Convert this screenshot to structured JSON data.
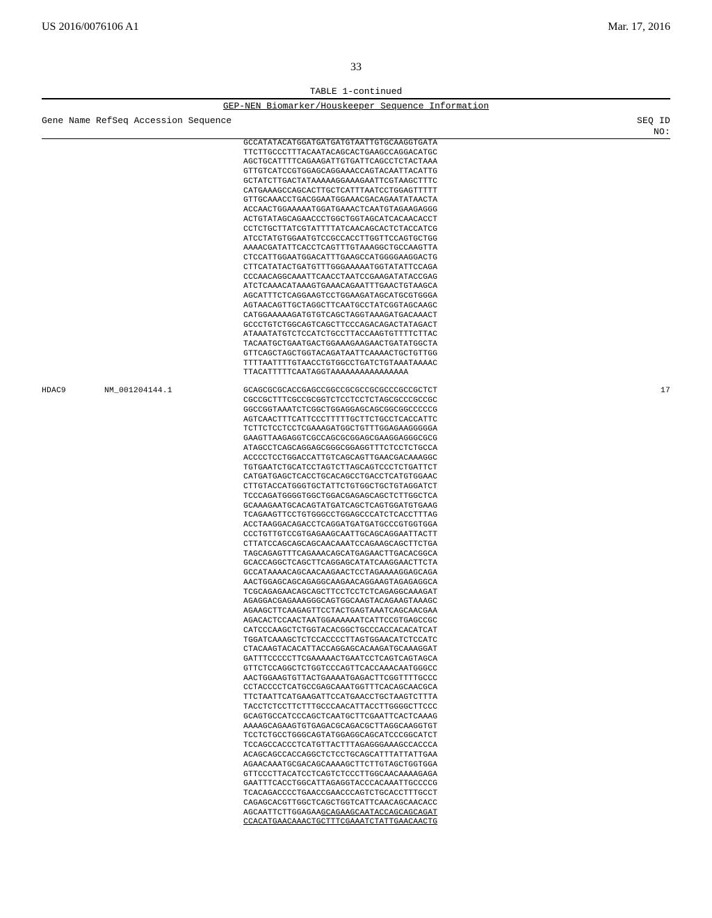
{
  "header": {
    "left": "US 2016/0076106 A1",
    "right": "Mar. 17, 2016"
  },
  "pageNumber": "33",
  "tableCaption": "TABLE 1-continued",
  "tableTitle": "GEP-NEN Biomarker/Houskeeper Sequence Information",
  "columns": {
    "left": "Gene Name RefSeq Accession Sequence",
    "right": "SEQ ID\nNO:"
  },
  "block1Lines": [
    "GCCATATACATGGATGATGATGTAATTGTGCAAGGTGATA",
    "TTCTTGCCCTTTACAATACAGCACTGAAGCCAGGACATGC",
    "AGCTGCATTTTCAGAAGATTGTGATTCAGCCTCTACTAAA",
    "GTTGTCATCCGTGGAGCAGGAAACCAGTACAATTACATTG",
    "GCTATCTTGACTATAAAAAGGAAAGAATTCGTAAGCTTTC",
    "CATGAAAGCCAGCACTTGCTCATTTAATCCTGGAGTTTTT",
    "GTTGCAAACCTGACGGAATGGAAACGACAGAATATAACTA",
    "ACCAACTGGAAAAATGGATGAAACTCAATGTAGAAGAGGG",
    "ACTGTATAGCAGAACCCTGGCTGGTAGCATCACAACACCT",
    "CCTCTGCTTATCGTATTTTATCAACAGCACTCTACCATCG",
    "ATCCTATGTGGAATGTCCGCCACCTTGGTTCCAGTGCTGG",
    "AAAACGATATTCACCTCAGTTTGTAAAGGCTGCCAAGTTA",
    "CTCCATTGGAATGGACATTTGAAGCCATGGGGAAGGACTG",
    "CTTCATATACTGATGTTTGGGAAAAATGGTATATTCCAGA",
    "CCCAACAGGCAAATTCAACCTAATCCGAAGATATACCGAG",
    "ATCTCAAACATAAAGTGAAACAGAATTTGAACTGTAAGCA",
    "AGCATTTCTCAGGAAGTCCTGGAAGATAGCATGCGTGGGA",
    "AGTAACAGTTGCTAGGCTTCAATGCCTATCGGTAGCAAGC",
    "CATGGAAAAAGATGTGTCAGCTAGGTAAAGATGACAAACT",
    "GCCCTGTCTGGCAGTCAGCTTCCCAGACAGACTATAGACT",
    "ATAAATATGTCTCCATCTGCCTTACCAAGTGTTTTCTTAC",
    "TACAATGCTGAATGACTGGAAAGAAGAACTGATATGGCTA",
    "GTTCAGCTAGCTGGTACAGATAATTCAAAACTGCTGTTGG",
    "TTTTAATTTTGTAACCTGTGGCCTGATCTGTAAATAAAAC",
    "TTACATTTTTCAATAGGTAAAAAAAAAAAAAAAA"
  ],
  "block2": {
    "gene": "HDAC9",
    "accession": "NM_001204144.1",
    "seqId": "17"
  },
  "block2Lines": [
    "GCAGCGCGCACCGAGCCGGCCGCGCCGCGCCCGCCGCTCT",
    "CGCCGCTTTCGCCGCGGTCTCCTCCTCTAGCGCCCGCCGC",
    "GGCCGGTAAATCTCGGCTGGAGGAGCAGCGGCGGCCCCCG",
    "AGTCAACTTTCATTCCCTTTTTGCTTCTGCCTCACCATTC",
    "TCTTCTCCTCCTCGAAAGATGGCTGTTTGGAGAAGGGGGA",
    "GAAGTTAAGAGGTCGCCAGCGCGGAGCGAAGGAGGGCGCG",
    "ATAGCCTCAGCAGGAGCGGGCGGAGGTTTCTCCTCTGCCA",
    "ACCCCTCCTGGACCATTGTCAGCAGTTGAACGACAAAGGC",
    "TGTGAATCTGCATCCTAGTCTTAGCAGTCCCTCTGATTCT",
    "CATGATGAGCTCACCTGCACAGCCTGACCTCATGTGGAAC",
    "CTTGTACCATGGGTGCTATTCTGTGGCTGCTGTAGGATCT",
    "TCCCAGATGGGGTGGCTGGACGAGAGCAGCTCTTGGCTCA",
    "GCAAAGAATGCACAGTATGATCAGCTCAGTGGATGTGAAG",
    "TCAGAAGTTCCTGTGGGCCTGGAGCCCATCTCACCTTTAG",
    "ACCTAAGGACAGACCTCAGGATGATGATGCCCGTGGTGGA",
    "CCCTGTTGTCCGTGAGAAGCAATTGCAGCAGGAATTACTT",
    "CTTATCCAGCAGCAGCAACAAATCCAGAAGCAGCTTCTGA",
    "TAGCAGAGTTTCAGAAACAGCATGAGAACTTGACACGGCA",
    "GCACCAGGCTCAGCTTCAGGAGCATATCAAGGAACTTCTA",
    "GCCATAAAACAGCAACAAGAACTCCTAGAAAAGGAGCAGA",
    "AACTGGAGCAGCAGAGGCAAGAACAGGAAGTAGAGAGGCA",
    "TCGCAGAGAACAGCAGCTTCCTCCTCTCAGAGGCAAAGAT",
    "AGAGGACGAGAAAGGGCAGTGGCAAGTACAGAAGTAAAGC",
    "AGAAGCTTCAAGAGTTCCTACTGAGTAAATCAGCAACGAA",
    "AGACACTCCAACTAATGGAAAAAATCATTCCGTGAGCCGC",
    "CATCCCAAGCTCTGGTACACGGCTGCCCACCACACATCAT",
    "TGGATCAAAGCTCTCCACCCCTTAGTGGAACATCTCCATC",
    "CTACAAGTACACATTACCAGGAGCACAAGATGCAAAGGAT",
    "GATTTCCCCCTTCGAAAAACTGAATCCTCAGTCAGTAGCA",
    "GTTCTCCAGGCTCTGGTCCCAGTTCACCAAACAATGGGCC",
    "AACTGGAAGTGTTACTGAAAATGAGACTTCGGTTTTGCCC",
    "CCTACCCCTCATGCCGAGCAAATGGTTTCACAGCAACGCA",
    "TTCTAATTCATGAAGATTCCATGAACCTGCTAAGTCTTTA",
    "TACCTCTCCTTCTTTGCCCAACATTACCTTGGGGCTTCCC",
    "GCAGTGCCATCCCAGCTCAATGCTTCGAATTCACTCAAAG",
    "AAAAGCAGAAGTGTGAGACGCAGACGCTTAGGCAAGGTGT",
    "TCCTCTGCCTGGGCAGTATGGAGGCAGCATCCCGGCATCT",
    "TCCAGCCACCCTCATGTTACTTTAGAGGGAAAGCCACCCA",
    "ACAGCAGCCACCAGGCTCTCCTGCAGCATTTATTATTGAA",
    "AGAACAAATGCGACAGCAAAAGCTTCTTGTAGCTGGTGGA",
    "GTTCCCTTACATCCTCAGTCTCCCTTGGCAACAAAAGAGA",
    "GAATTTCACCTGGCATTAGAGGTACCCACAAATTGCCCCG",
    "TCACAGACCCCTGAACCGAACCCAGTCTGCACCTTTGCCT",
    "CAGAGCACGTTGGCTCAGCTGGTCATTCAACAGCAACACC",
    "AGCAATTCTTGGAGAA"
  ],
  "block2UnderlinePart": "GCAGAAGCAATACCAGCAGCAGAT",
  "block2LastLine": "CCACATGAACAAACTGCTTTCGAAATCTATTGAACAACTG"
}
